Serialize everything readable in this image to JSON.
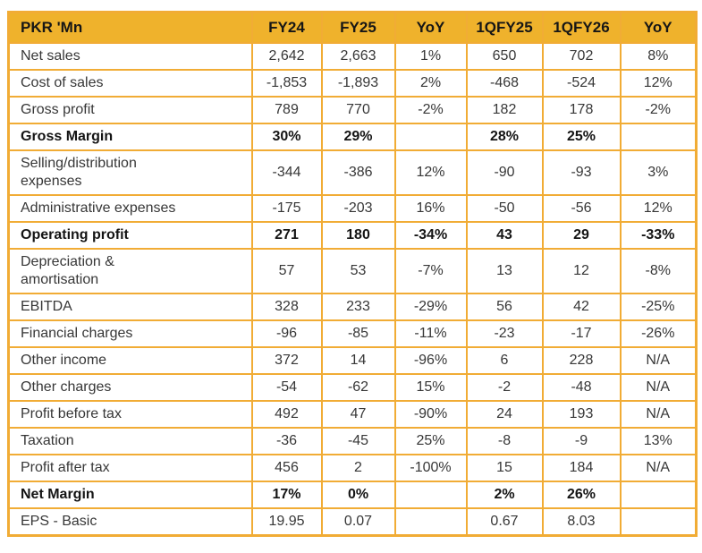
{
  "table": {
    "unit_header": "PKR 'Mn",
    "columns": [
      "PKR 'Mn",
      "FY24",
      "FY25",
      "YoY",
      "1QFY25",
      "1QFY26",
      "YoY"
    ],
    "rows": [
      {
        "label": "Net sales",
        "values": [
          "2,642",
          "2,663",
          "1%",
          "650",
          "702",
          "8%"
        ],
        "bold": false
      },
      {
        "label": "Cost of sales",
        "values": [
          "-1,853",
          "-1,893",
          "2%",
          "-468",
          "-524",
          "12%"
        ],
        "bold": false
      },
      {
        "label": "Gross profit",
        "values": [
          "789",
          "770",
          "-2%",
          "182",
          "178",
          "-2%"
        ],
        "bold": false
      },
      {
        "label": "Gross Margin",
        "values": [
          "30%",
          "29%",
          "",
          "28%",
          "25%",
          ""
        ],
        "bold": true
      },
      {
        "label": "Selling/distribution\nexpenses",
        "values": [
          "-344",
          "-386",
          "12%",
          "-90",
          "-93",
          "3%"
        ],
        "bold": false
      },
      {
        "label": "Administrative expenses",
        "values": [
          "-175",
          "-203",
          "16%",
          "-50",
          "-56",
          "12%"
        ],
        "bold": false
      },
      {
        "label": "Operating profit",
        "values": [
          "271",
          "180",
          "-34%",
          "43",
          "29",
          "-33%"
        ],
        "bold": true
      },
      {
        "label": "Depreciation &\namortisation",
        "values": [
          "57",
          "53",
          "-7%",
          "13",
          "12",
          "-8%"
        ],
        "bold": false
      },
      {
        "label": "EBITDA",
        "values": [
          "328",
          "233",
          "-29%",
          "56",
          "42",
          "-25%"
        ],
        "bold": false
      },
      {
        "label": "Financial charges",
        "values": [
          "-96",
          "-85",
          "-11%",
          "-23",
          "-17",
          "-26%"
        ],
        "bold": false
      },
      {
        "label": "Other income",
        "values": [
          "372",
          "14",
          "-96%",
          "6",
          "228",
          "N/A"
        ],
        "bold": false
      },
      {
        "label": "Other charges",
        "values": [
          "-54",
          "-62",
          "15%",
          "-2",
          "-48",
          "N/A"
        ],
        "bold": false
      },
      {
        "label": "Profit before tax",
        "values": [
          "492",
          "47",
          "-90%",
          "24",
          "193",
          "N/A"
        ],
        "bold": false
      },
      {
        "label": "Taxation",
        "values": [
          "-36",
          "-45",
          "25%",
          "-8",
          "-9",
          "13%"
        ],
        "bold": false
      },
      {
        "label": "Profit after tax",
        "values": [
          "456",
          "2",
          "-100%",
          "15",
          "184",
          "N/A"
        ],
        "bold": false
      },
      {
        "label": "Net Margin",
        "values": [
          "17%",
          "0%",
          "",
          "2%",
          "26%",
          ""
        ],
        "bold": true
      },
      {
        "label": "EPS - Basic",
        "values": [
          "19.95",
          "0.07",
          "",
          "0.67",
          "8.03",
          ""
        ],
        "bold": false
      }
    ],
    "colors": {
      "header_bg": "#EFB22C",
      "border": "#F1AC35",
      "cell_bg": "#FFFFFF",
      "body_text": "#373737",
      "bold_text": "#141414",
      "header_text": "#161616"
    }
  }
}
